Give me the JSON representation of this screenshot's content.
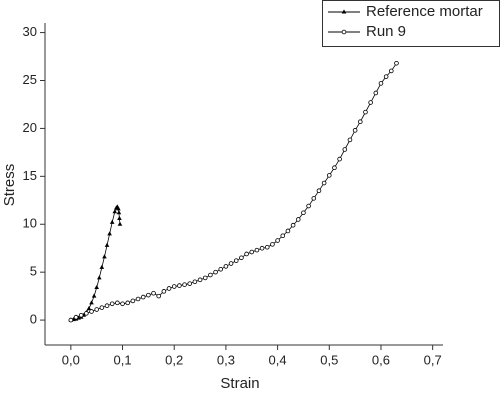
{
  "chart_data": {
    "type": "line",
    "x_label": "Strain",
    "y_label": "Stress",
    "xlim": [
      -0.05,
      0.72
    ],
    "ylim": [
      -2.6,
      31
    ],
    "xticks": [
      {
        "value": 0,
        "label": "0,0"
      },
      {
        "value": 0.1,
        "label": "0,1"
      },
      {
        "value": 0.2,
        "label": "0,2"
      },
      {
        "value": 0.3,
        "label": "0,3"
      },
      {
        "value": 0.4,
        "label": "0,4"
      },
      {
        "value": 0.5,
        "label": "0,5"
      },
      {
        "value": 0.6,
        "label": "0,6"
      },
      {
        "value": 0.7,
        "label": "0,7"
      }
    ],
    "yticks": [
      0,
      5,
      10,
      15,
      20,
      25,
      30
    ],
    "legend": "top-right",
    "series": [
      {
        "name": "Reference mortar",
        "color": "#000000",
        "marker": "triangle",
        "x": [
          0.0,
          0.005,
          0.01,
          0.015,
          0.02,
          0.025,
          0.03,
          0.035,
          0.04,
          0.045,
          0.05,
          0.055,
          0.06,
          0.065,
          0.07,
          0.075,
          0.08,
          0.085,
          0.088,
          0.09,
          0.092,
          0.093,
          0.094,
          0.095
        ],
        "values": [
          0,
          0.05,
          0.1,
          0.2,
          0.3,
          0.5,
          0.8,
          1.2,
          1.8,
          2.5,
          3.4,
          4.4,
          5.5,
          6.6,
          7.8,
          9.0,
          10.2,
          11.3,
          11.7,
          11.8,
          11.6,
          11.2,
          10.6,
          10.0
        ]
      },
      {
        "name": "Run 9",
        "color": "#000000",
        "marker": "circle",
        "x": [
          0,
          0.01,
          0.02,
          0.03,
          0.04,
          0.05,
          0.06,
          0.07,
          0.08,
          0.09,
          0.1,
          0.11,
          0.12,
          0.13,
          0.14,
          0.15,
          0.16,
          0.17,
          0.18,
          0.19,
          0.2,
          0.21,
          0.22,
          0.23,
          0.24,
          0.25,
          0.26,
          0.27,
          0.28,
          0.29,
          0.3,
          0.31,
          0.32,
          0.33,
          0.34,
          0.35,
          0.36,
          0.37,
          0.38,
          0.39,
          0.4,
          0.41,
          0.42,
          0.43,
          0.44,
          0.45,
          0.46,
          0.47,
          0.48,
          0.49,
          0.5,
          0.51,
          0.52,
          0.53,
          0.54,
          0.55,
          0.56,
          0.57,
          0.58,
          0.59,
          0.6,
          0.61,
          0.62,
          0.63
        ],
        "values": [
          0,
          0.3,
          0.5,
          0.7,
          0.9,
          1.1,
          1.3,
          1.5,
          1.7,
          1.8,
          1.7,
          1.8,
          2.0,
          2.2,
          2.4,
          2.6,
          2.8,
          2.5,
          3.0,
          3.3,
          3.5,
          3.6,
          3.7,
          3.8,
          4.0,
          4.2,
          4.4,
          4.7,
          5.0,
          5.3,
          5.6,
          5.9,
          6.2,
          6.5,
          6.9,
          7.1,
          7.3,
          7.5,
          7.6,
          7.9,
          8.3,
          8.8,
          9.3,
          9.9,
          10.5,
          11.2,
          11.9,
          12.7,
          13.5,
          14.3,
          15.1,
          15.9,
          16.8,
          17.8,
          18.8,
          19.8,
          20.7,
          21.7,
          22.7,
          23.7,
          24.7,
          25.4,
          26.0,
          26.8
        ]
      }
    ]
  }
}
